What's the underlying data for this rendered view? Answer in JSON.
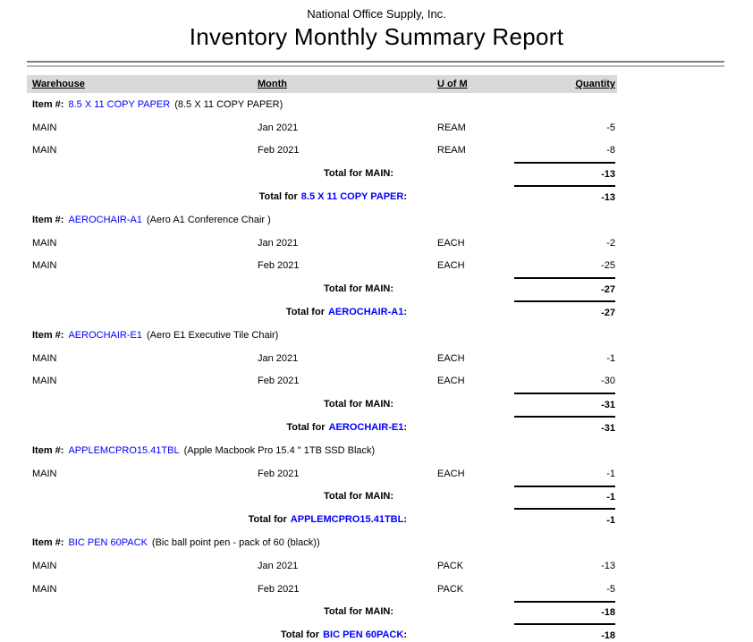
{
  "report": {
    "company": "National Office Supply, Inc.",
    "title": "Inventory Monthly Summary Report"
  },
  "table": {
    "columns": {
      "warehouse": "Warehouse",
      "month": "Month",
      "uom": "U of M",
      "quantity": "Quantity"
    }
  },
  "labels": {
    "item_prefix": "Item #:",
    "total_for": "Total for",
    "colon": ":"
  },
  "colors": {
    "item_link": "#0000ff",
    "header_band": "#d9d9d9"
  },
  "sections": [
    {
      "code": "8.5 X 11 COPY PAPER",
      "description": "(8.5 X 11 COPY PAPER)",
      "rows": [
        {
          "warehouse": "MAIN",
          "month": "Jan 2021",
          "uom": "REAM",
          "quantity": "-5"
        },
        {
          "warehouse": "MAIN",
          "month": "Feb 2021",
          "uom": "REAM",
          "quantity": "-8"
        }
      ],
      "warehouse_total": {
        "label": "Total for MAIN:",
        "quantity": "-13"
      },
      "item_total": {
        "quantity": "-13"
      }
    },
    {
      "code": "AEROCHAIR-A1",
      "description": "(Aero A1 Conference Chair )",
      "rows": [
        {
          "warehouse": "MAIN",
          "month": "Jan 2021",
          "uom": "EACH",
          "quantity": "-2"
        },
        {
          "warehouse": "MAIN",
          "month": "Feb 2021",
          "uom": "EACH",
          "quantity": "-25"
        }
      ],
      "warehouse_total": {
        "label": "Total for MAIN:",
        "quantity": "-27"
      },
      "item_total": {
        "quantity": "-27"
      }
    },
    {
      "code": "AEROCHAIR-E1",
      "description": "(Aero E1 Executive Tile Chair)",
      "rows": [
        {
          "warehouse": "MAIN",
          "month": "Jan 2021",
          "uom": "EACH",
          "quantity": "-1"
        },
        {
          "warehouse": "MAIN",
          "month": "Feb 2021",
          "uom": "EACH",
          "quantity": "-30"
        }
      ],
      "warehouse_total": {
        "label": "Total for MAIN:",
        "quantity": "-31"
      },
      "item_total": {
        "quantity": "-31"
      }
    },
    {
      "code": "APPLEMCPRO15.41TBL",
      "description": "(Apple Macbook Pro 15.4 \" 1TB SSD Black)",
      "rows": [
        {
          "warehouse": "MAIN",
          "month": "Feb 2021",
          "uom": "EACH",
          "quantity": "-1"
        }
      ],
      "warehouse_total": {
        "label": "Total for MAIN:",
        "quantity": "-1"
      },
      "item_total": {
        "quantity": "-1"
      }
    },
    {
      "code": "BIC PEN 60PACK",
      "description": "(Bic ball point pen - pack of 60 (black))",
      "rows": [
        {
          "warehouse": "MAIN",
          "month": "Jan 2021",
          "uom": "PACK",
          "quantity": "-13"
        },
        {
          "warehouse": "MAIN",
          "month": "Feb 2021",
          "uom": "PACK",
          "quantity": "-5"
        }
      ],
      "warehouse_total": {
        "label": "Total for MAIN:",
        "quantity": "-18"
      },
      "item_total": {
        "quantity": "-18"
      }
    }
  ]
}
